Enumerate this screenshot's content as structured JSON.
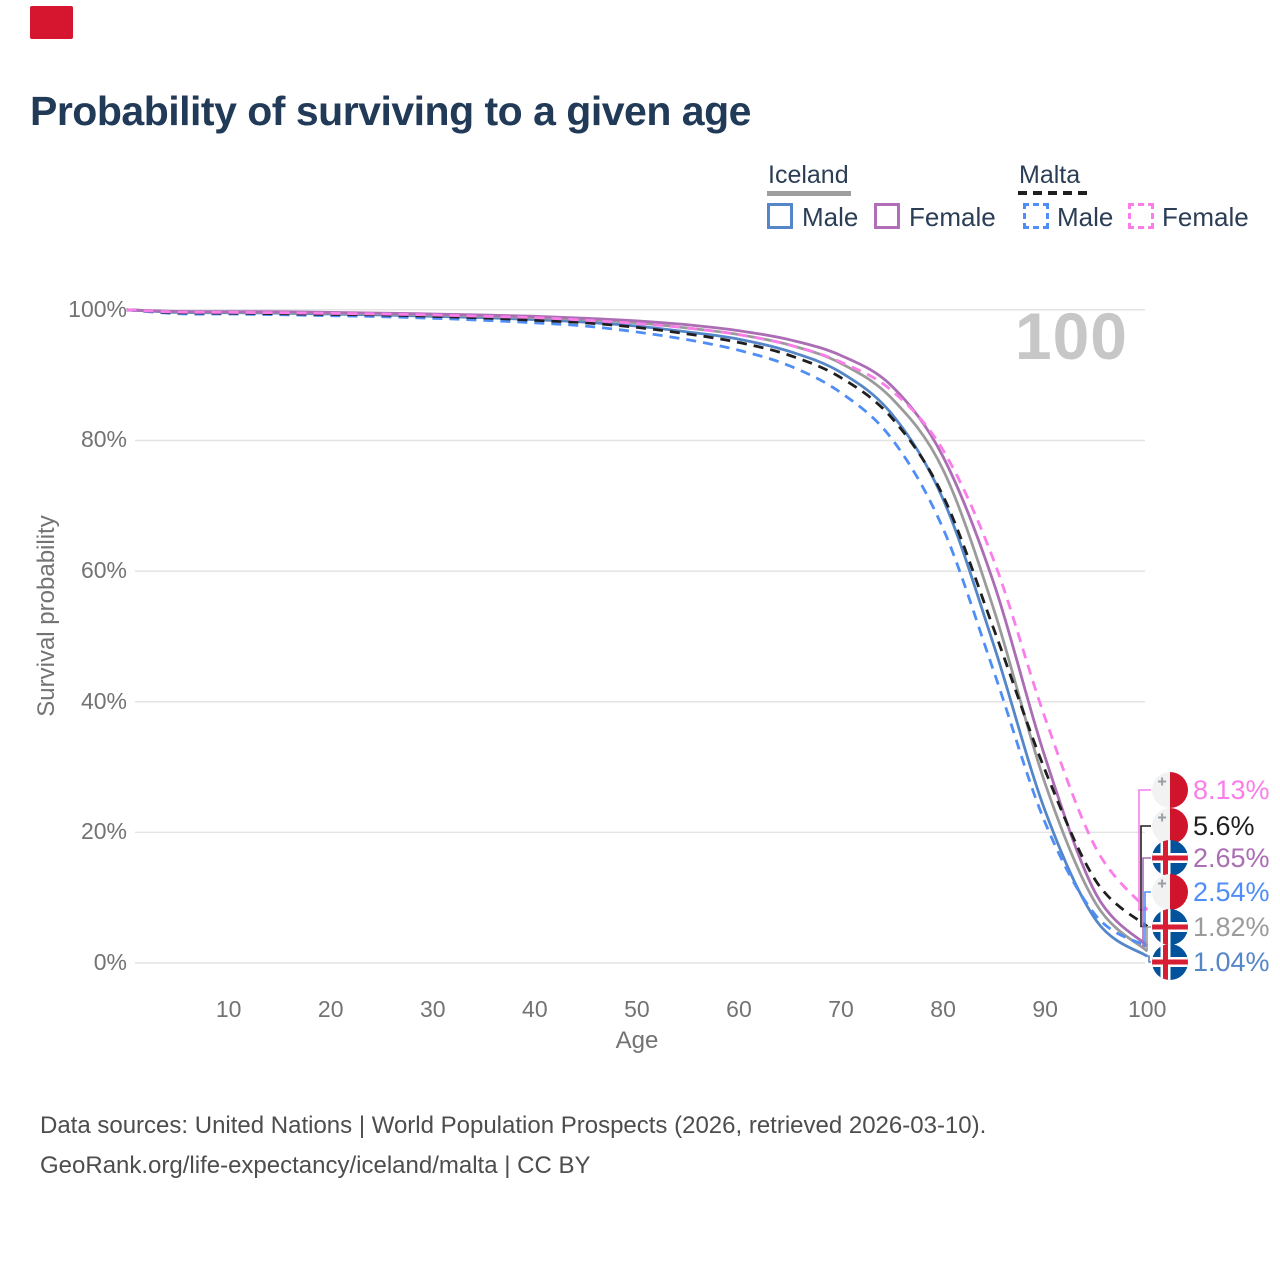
{
  "page": {
    "title": "Probability of surviving to a given age"
  },
  "legend": {
    "groups": [
      {
        "name": "Iceland",
        "style": "solid",
        "underline_color": "#9e9e9e",
        "items": [
          {
            "label": "Male",
            "color": "#5586c8"
          },
          {
            "label": "Female",
            "color": "#b06fb6"
          }
        ]
      },
      {
        "name": "Malta",
        "style": "dashed",
        "underline_color": "#1f1f1f",
        "items": [
          {
            "label": "Male",
            "color": "#4f8ef7"
          },
          {
            "label": "Female",
            "color": "#fa7de9"
          }
        ]
      }
    ]
  },
  "chart_data": {
    "type": "line",
    "title": "Probability of surviving to a given age",
    "xlabel": "Age",
    "ylabel": "Survival probability",
    "xlim": [
      0,
      100
    ],
    "ylim": [
      0,
      100
    ],
    "grid": "horizontal-only",
    "legend_position": "top-right",
    "hover_age_label": "100",
    "x_ticks": [
      10,
      20,
      30,
      40,
      50,
      60,
      70,
      80,
      90,
      100
    ],
    "y_ticks": [
      {
        "label": "100%",
        "value": 100
      },
      {
        "label": "80%",
        "value": 80
      },
      {
        "label": "60%",
        "value": 60
      },
      {
        "label": "40%",
        "value": 40
      },
      {
        "label": "20%",
        "value": 20
      },
      {
        "label": "0%",
        "value": 0
      }
    ],
    "ages": [
      0,
      5,
      10,
      15,
      20,
      25,
      30,
      35,
      40,
      45,
      50,
      55,
      60,
      65,
      70,
      75,
      80,
      85,
      90,
      95,
      100
    ],
    "series": [
      {
        "id": "iceland_male",
        "name": "Iceland Male",
        "country": "Iceland",
        "sex": "Male",
        "color": "#5586c8",
        "dashed": false,
        "values": [
          100,
          99.6,
          99.55,
          99.5,
          99.35,
          99.2,
          99.0,
          98.8,
          98.5,
          98.1,
          97.5,
          96.6,
          95.5,
          93.6,
          90.4,
          84.0,
          71.0,
          48.5,
          23.3,
          6.5,
          1.04
        ],
        "end_label": "1.04%"
      },
      {
        "id": "iceland_total",
        "name": "Iceland (both sexes)",
        "country": "Iceland",
        "sex": "Both",
        "color": "#9b9b9b",
        "dashed": false,
        "values": [
          100,
          99.7,
          99.65,
          99.6,
          99.5,
          99.35,
          99.2,
          99.05,
          98.8,
          98.5,
          98.0,
          97.2,
          96.2,
          94.6,
          91.8,
          86.4,
          75.5,
          54.0,
          27.5,
          9.0,
          1.82
        ],
        "end_label": "1.82%"
      },
      {
        "id": "iceland_female",
        "name": "Iceland Female",
        "country": "Iceland",
        "sex": "Female",
        "color": "#ab6db4",
        "dashed": false,
        "values": [
          100,
          99.75,
          99.72,
          99.7,
          99.6,
          99.5,
          99.35,
          99.2,
          99.0,
          98.7,
          98.3,
          97.7,
          96.8,
          95.4,
          93.0,
          88.3,
          77.5,
          58.0,
          31.5,
          10.5,
          2.65
        ],
        "end_label": "2.65%"
      },
      {
        "id": "malta_male",
        "name": "Malta Male",
        "country": "Malta",
        "sex": "Male",
        "color": "#4f8ef7",
        "dashed": true,
        "values": [
          100,
          99.4,
          99.35,
          99.25,
          99.1,
          98.95,
          98.7,
          98.4,
          98.0,
          97.5,
          96.6,
          95.4,
          93.8,
          91.4,
          87.3,
          80.2,
          66.5,
          44.5,
          21.5,
          7.2,
          2.54
        ],
        "end_label": "2.54%"
      },
      {
        "id": "malta_total",
        "name": "Malta (both sexes)",
        "country": "Malta",
        "sex": "Both",
        "color": "#1f1f1f",
        "dashed": true,
        "values": [
          100,
          99.55,
          99.5,
          99.4,
          99.3,
          99.2,
          99.0,
          98.75,
          98.4,
          98.0,
          97.3,
          96.3,
          95.0,
          93.0,
          89.6,
          83.4,
          71.5,
          51.0,
          29.5,
          12.5,
          5.6
        ],
        "end_label": "5.6%"
      },
      {
        "id": "malta_female",
        "name": "Malta Female",
        "country": "Malta",
        "sex": "Female",
        "color": "#fa7de9",
        "dashed": true,
        "values": [
          100,
          99.65,
          99.6,
          99.55,
          99.45,
          99.35,
          99.2,
          99.0,
          98.8,
          98.4,
          97.9,
          97.2,
          96.2,
          94.6,
          92.0,
          87.6,
          78.5,
          61.5,
          37.5,
          17.5,
          8.13
        ],
        "end_label": "8.13%"
      }
    ],
    "end_labels": [
      {
        "series": "malta_female",
        "text": "8.13%",
        "color": "#fa7de9",
        "flag": "malta"
      },
      {
        "series": "malta_total",
        "text": "5.6%",
        "color": "#1f1f1f",
        "flag": "malta"
      },
      {
        "series": "iceland_female",
        "text": "2.65%",
        "color": "#ab6db4",
        "flag": "iceland"
      },
      {
        "series": "malta_male",
        "text": "2.54%",
        "color": "#4f8ef7",
        "flag": "malta"
      },
      {
        "series": "iceland_total",
        "text": "1.82%",
        "color": "#9b9b9b",
        "flag": "iceland"
      },
      {
        "series": "iceland_male",
        "text": "1.04%",
        "color": "#5586c8",
        "flag": "iceland"
      }
    ]
  },
  "footer": {
    "line1": "Data sources: United Nations | World Population Prospects (2026, retrieved 2026-03-10).",
    "line2": "GeoRank.org/life-expectancy/iceland/malta | CC BY"
  }
}
